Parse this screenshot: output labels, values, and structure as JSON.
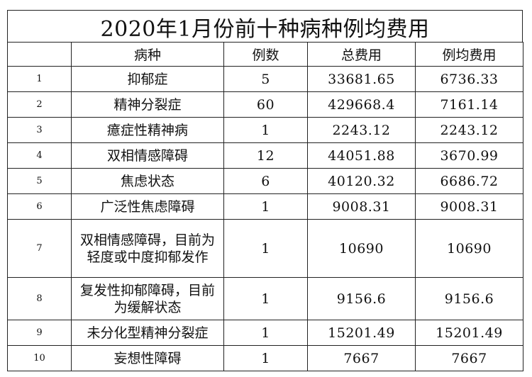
{
  "title": "2020年1月份前十种病种例均费用",
  "headers": [
    "",
    "病种",
    "例数",
    "总费用",
    "例均费用"
  ],
  "rows": [
    {
      "index": "1",
      "disease": "抑郁症",
      "cases": "5",
      "total": "33681.65",
      "avg": "6736.33"
    },
    {
      "index": "2",
      "disease": "精神分裂症",
      "cases": "60",
      "total": "429668.4",
      "avg": "7161.14"
    },
    {
      "index": "3",
      "disease": "癔症性精神病",
      "cases": "1",
      "total": "2243.12",
      "avg": "2243.12"
    },
    {
      "index": "4",
      "disease": "双相情感障碍",
      "cases": "12",
      "total": "44051.88",
      "avg": "3670.99"
    },
    {
      "index": "5",
      "disease": "焦虑状态",
      "cases": "6",
      "total": "40120.32",
      "avg": "6686.72"
    },
    {
      "index": "6",
      "disease": "广泛性焦虑障碍",
      "cases": "1",
      "total": "9008.31",
      "avg": "9008.31"
    },
    {
      "index": "7",
      "disease": "双相情感障碍，目前为轻度或中度抑郁发作",
      "cases": "1",
      "total": "10690",
      "avg": "10690"
    },
    {
      "index": "8",
      "disease": "复发性抑郁障碍，目前为缓解状态",
      "cases": "1",
      "total": "9156.6",
      "avg": "9156.6"
    },
    {
      "index": "9",
      "disease": "未分化型精神分裂症",
      "cases": "1",
      "total": "15201.49",
      "avg": "15201.49"
    },
    {
      "index": "10",
      "disease": "妄想性障碍",
      "cases": "1",
      "total": "7667",
      "avg": "7667"
    }
  ]
}
